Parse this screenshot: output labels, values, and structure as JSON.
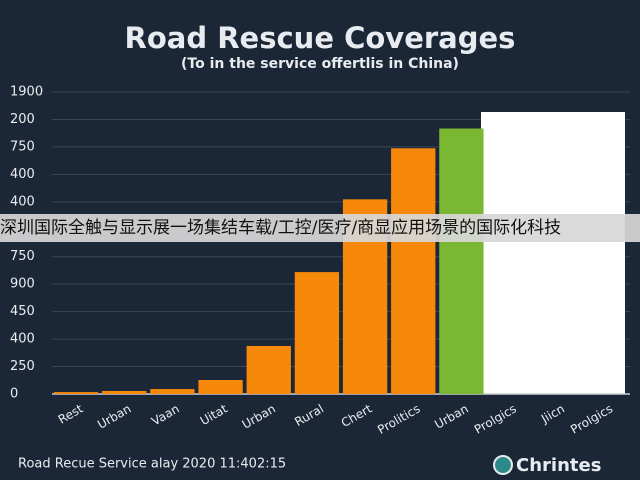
{
  "chart_data": {
    "type": "bar",
    "title": "Road Rescue Coverages",
    "subtitle": "(To in the service offertlis in China)",
    "categories": [
      "Rest",
      "Urban",
      "Vaan",
      "Uitat",
      "Urban",
      "Rural",
      "Chert",
      "Prolitics",
      "Urban",
      "Prolgics",
      "Jiicn",
      "Prolgics"
    ],
    "values": [
      7,
      11,
      18,
      51,
      175,
      444,
      709,
      895,
      967,
      null,
      null,
      null
    ],
    "colors": [
      "#f7890a",
      "#f7890a",
      "#f7890a",
      "#f7890a",
      "#f7890a",
      "#f7890a",
      "#f7890a",
      "#f7890a",
      "#7ab833",
      null,
      null,
      null
    ],
    "ylim": [
      0,
      1100
    ],
    "yticks": [
      0,
      {
        "value": 100,
        "label": "250"
      },
      {
        "value": 200,
        "label": "400"
      },
      {
        "value": 300,
        "label": "450"
      },
      {
        "value": 400,
        "label": "900"
      },
      {
        "value": 500,
        "label": "750"
      },
      {
        "value": 700,
        "label": "400"
      },
      {
        "value": 800,
        "label": "400"
      },
      {
        "value": 900,
        "label": "750"
      },
      {
        "value": 1000,
        "label": "200"
      },
      {
        "value": 1100,
        "label": "1900"
      }
    ],
    "grid": true,
    "footer": "Road Recue Service alay 2020 11:402:15",
    "logo": "Chrintes"
  },
  "banner": "深圳国际全触与显示展一场集结车载/工控/医疗/商显应用场景的国际化科技"
}
